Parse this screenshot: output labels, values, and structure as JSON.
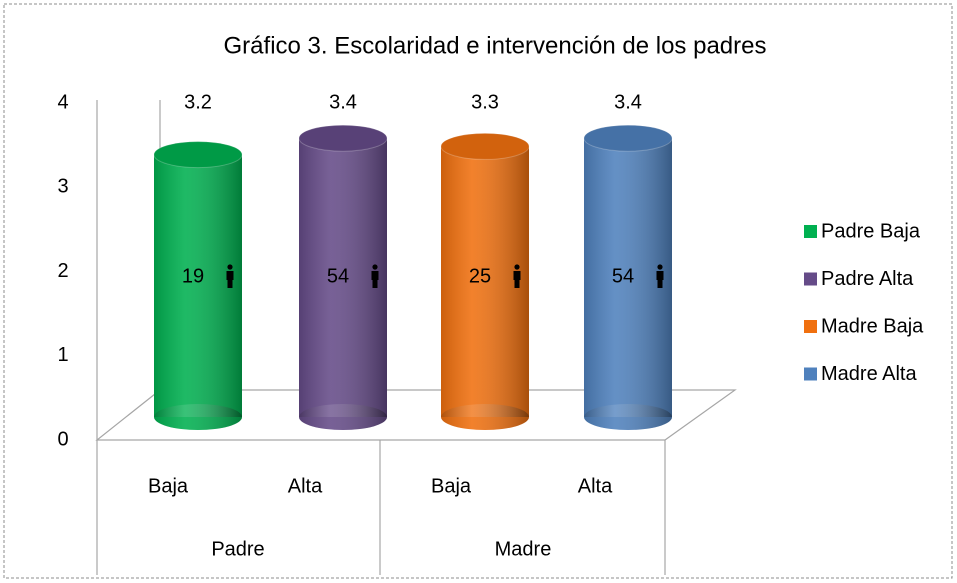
{
  "chart_data": {
    "type": "bar",
    "title": "Gráfico 3. Escolaridad e intervención de los padres",
    "categories": [
      "Baja",
      "Alta",
      "Baja",
      "Alta"
    ],
    "groups": [
      "Padre",
      "Madre"
    ],
    "series": [
      {
        "name": "Padre Baja",
        "color": "#00b050",
        "values": [
          3.2,
          null,
          null,
          null
        ],
        "count": 19
      },
      {
        "name": "Padre Alta",
        "color": "#654b88",
        "values": [
          null,
          3.4,
          null,
          null
        ],
        "count": 54
      },
      {
        "name": "Madre Baja",
        "color": "#f0700f",
        "values": [
          null,
          null,
          3.3,
          null
        ],
        "count": 25
      },
      {
        "name": "Madre Alta",
        "color": "#4f81bd",
        "values": [
          null,
          null,
          null,
          3.4
        ],
        "count": 54
      }
    ],
    "ylim": [
      0,
      4
    ],
    "yticks": [
      0,
      1,
      2,
      3,
      4
    ],
    "legend": "right"
  }
}
